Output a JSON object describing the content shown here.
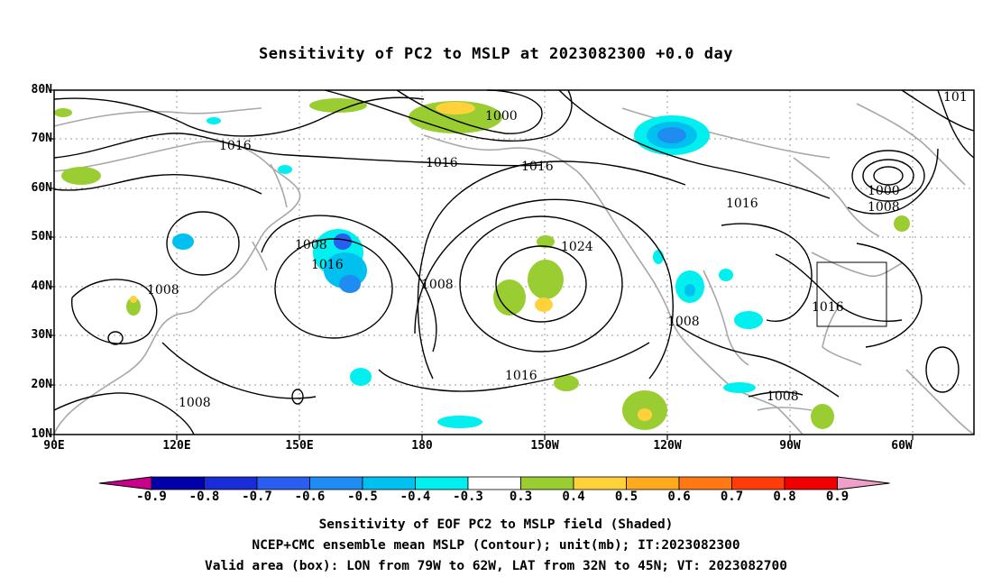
{
  "title": "Sensitivity of PC2 to MSLP at 2023082300 +0.0 day",
  "lat_labels": [
    "80N",
    "70N",
    "60N",
    "50N",
    "40N",
    "30N",
    "20N",
    "10N"
  ],
  "lon_labels": [
    "90E",
    "120E",
    "150E",
    "180",
    "150W",
    "120W",
    "90W",
    "60W"
  ],
  "contour_labels": [
    {
      "text": "1016"
    },
    {
      "text": "1000"
    },
    {
      "text": "1016"
    },
    {
      "text": "1016"
    },
    {
      "text": "1016"
    },
    {
      "text": "1000"
    },
    {
      "text": "1008"
    },
    {
      "text": "1008"
    },
    {
      "text": "1016"
    },
    {
      "text": "1024"
    },
    {
      "text": "1008"
    },
    {
      "text": "1008"
    },
    {
      "text": "1008"
    },
    {
      "text": "1016"
    },
    {
      "text": "1016"
    },
    {
      "text": "1008"
    },
    {
      "text": "1008"
    },
    {
      "text": "101"
    }
  ],
  "colorbar": {
    "labels": [
      "-0.9",
      "-0.8",
      "-0.7",
      "-0.6",
      "-0.5",
      "-0.4",
      "-0.3",
      "0.3",
      "0.4",
      "0.5",
      "0.6",
      "0.7",
      "0.8",
      "0.9"
    ],
    "colors": [
      "#0000a8",
      "#1a2cd8",
      "#2a5ef0",
      "#1e8cf0",
      "#00c0f0",
      "#00f0f0",
      "#ffffff",
      "#9acd32",
      "#ffd23c",
      "#ffaa1e",
      "#ff7814",
      "#ff3c0a",
      "#f00000"
    ],
    "low_end_color": "#c8008c",
    "high_end_color": "#f0a0c8"
  },
  "captions": [
    "Sensitivity of EOF PC2 to MSLP field (Shaded)",
    "NCEP+CMC ensemble mean MSLP (Contour); unit(mb); IT:2023082300",
    "Valid area (box): LON from 79W to 62W, LAT from 32N to 45N; VT: 2023082700"
  ],
  "valid_area": {
    "lon_min": -79,
    "lon_max": -62,
    "lat_min": 32,
    "lat_max": 45
  }
}
